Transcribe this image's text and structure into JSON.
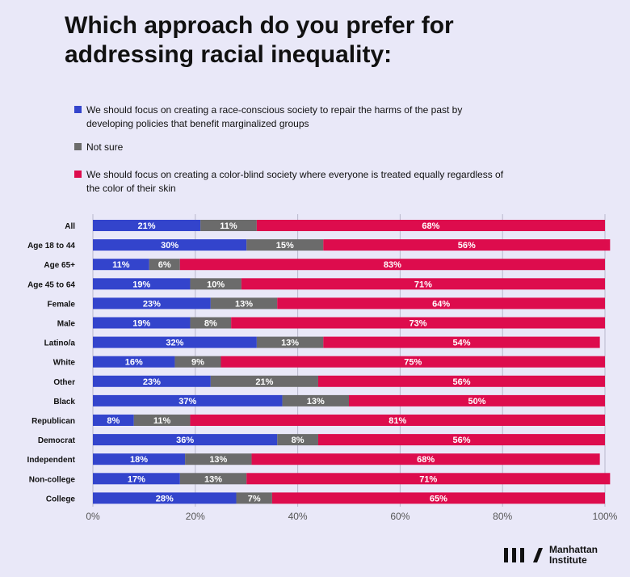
{
  "title": "Which approach do you prefer for addressing racial inequality:",
  "legend": [
    {
      "label": "We should focus on creating a race-conscious society to repair the harms of the past by developing policies that benefit marginalized groups",
      "color": "#3344cc"
    },
    {
      "label": "Not sure",
      "color": "#6b6b6b"
    },
    {
      "label": "We should focus on creating a color-blind society where everyone is treated equally regardless of the color of their skin",
      "color": "#dd0c4d"
    }
  ],
  "logo": {
    "mark": "III/",
    "text": "Manhattan Institute"
  },
  "chart_data": {
    "type": "bar",
    "orientation": "horizontal",
    "stacked": true,
    "categories": [
      "All",
      "Age 18 to 44",
      "Age 65+",
      "Age 45 to 64",
      "Female",
      "Male",
      "Latino/a",
      "White",
      "Other",
      "Black",
      "Republican",
      "Democrat",
      "Independent",
      "Non-college",
      "College"
    ],
    "series": [
      {
        "name": "We should focus on creating a race-conscious society to repair the harms of the past by developing policies that benefit marginalized groups",
        "color": "#3344cc",
        "values": [
          21,
          30,
          11,
          19,
          23,
          19,
          32,
          16,
          23,
          37,
          8,
          36,
          18,
          17,
          28
        ]
      },
      {
        "name": "Not sure",
        "color": "#6b6b6b",
        "values": [
          11,
          15,
          6,
          10,
          13,
          8,
          13,
          9,
          21,
          13,
          11,
          8,
          13,
          13,
          7
        ]
      },
      {
        "name": "We should focus on creating a color-blind society where everyone is treated equally regardless of the color of their skin",
        "color": "#dd0c4d",
        "values": [
          68,
          56,
          83,
          71,
          64,
          73,
          54,
          75,
          56,
          50,
          81,
          56,
          68,
          71,
          65
        ]
      }
    ],
    "xlim": [
      0,
      100
    ],
    "x_ticks": [
      "0%",
      "20%",
      "40%",
      "60%",
      "80%",
      "100%"
    ],
    "grid": true
  }
}
